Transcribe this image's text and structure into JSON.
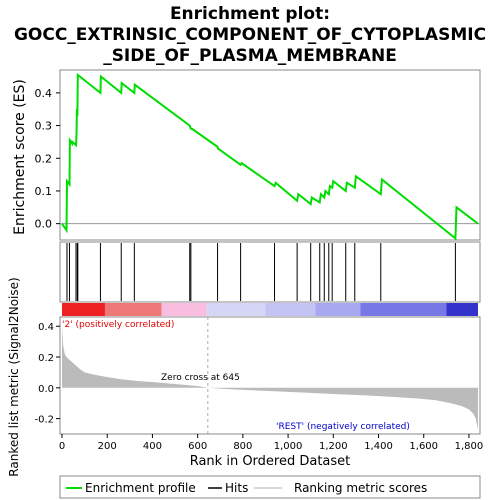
{
  "chart_data": {
    "type": "line",
    "title_lines": [
      "Enrichment plot:",
      "GOCC_EXTRINSIC_COMPONENT_OF_CYTOPLASMIC",
      "_SIDE_OF_PLASMA_MEMBRANE"
    ],
    "top_panel": {
      "ylabel": "Enrichment score (ES)",
      "ylim": [
        -0.05,
        0.47
      ],
      "yticks": [
        0.0,
        0.1,
        0.2,
        0.3,
        0.4
      ],
      "ytick_labels": [
        "0.0",
        "0.1",
        "0.2",
        "0.3",
        "0.4"
      ],
      "series": [
        {
          "line_color": "#00dd00",
          "x": [
            0,
            20,
            22,
            33,
            35,
            45,
            46,
            62,
            64,
            66,
            68,
            70,
            170,
            172,
            262,
            264,
            320,
            322,
            565,
            567,
            570,
            575,
            688,
            690,
            790,
            795,
            940,
            945,
            1040,
            1045,
            1100,
            1105,
            1140,
            1145,
            1160,
            1165,
            1180,
            1185,
            1195,
            1200,
            1255,
            1260,
            1295,
            1300,
            1410,
            1415,
            1740,
            1745,
            1840
          ],
          "y": [
            0.0,
            -0.02,
            0.13,
            0.12,
            0.255,
            0.245,
            0.25,
            0.24,
            0.27,
            0.35,
            0.33,
            0.455,
            0.4,
            0.45,
            0.4,
            0.43,
            0.4,
            0.425,
            0.3,
            0.295,
            0.29,
            0.29,
            0.235,
            0.23,
            0.18,
            0.185,
            0.115,
            0.125,
            0.07,
            0.09,
            0.06,
            0.08,
            0.065,
            0.09,
            0.08,
            0.1,
            0.09,
            0.115,
            0.11,
            0.13,
            0.1,
            0.125,
            0.11,
            0.145,
            0.09,
            0.135,
            -0.045,
            0.05,
            0.0
          ]
        }
      ]
    },
    "hits_panel": {
      "hit_color": "#000000",
      "hits": [
        22,
        33,
        62,
        68,
        70,
        170,
        262,
        320,
        565,
        570,
        688,
        790,
        940,
        1040,
        1100,
        1140,
        1160,
        1180,
        1195,
        1255,
        1295,
        1410,
        1740
      ]
    },
    "colorbar": {
      "segments": [
        {
          "x0": 0,
          "x1": 190,
          "color": "#ee2222"
        },
        {
          "x0": 190,
          "x1": 440,
          "color": "#ee7777"
        },
        {
          "x0": 440,
          "x1": 640,
          "color": "#f9bddf"
        },
        {
          "x0": 640,
          "x1": 900,
          "color": "#d6d6f6"
        },
        {
          "x0": 900,
          "x1": 1120,
          "color": "#c4c4f4"
        },
        {
          "x0": 1120,
          "x1": 1320,
          "color": "#a8a8f0"
        },
        {
          "x0": 1320,
          "x1": 1700,
          "color": "#7777e6"
        },
        {
          "x0": 1700,
          "x1": 1840,
          "color": "#3333cc"
        }
      ]
    },
    "bottom_panel": {
      "ylabel": "Ranked list metric (Signal2Noise)",
      "ylim": [
        -0.3,
        0.46
      ],
      "yticks": [
        -0.2,
        0.0,
        0.2,
        0.4
      ],
      "ytick_labels": [
        "-0.2",
        "0.0",
        "0.2",
        "0.4"
      ],
      "metric_x": [
        0,
        5,
        12,
        20,
        35,
        50,
        65,
        80,
        100,
        130,
        160,
        200,
        260,
        330,
        420,
        500,
        600,
        645,
        750,
        900,
        1050,
        1200,
        1350,
        1480,
        1580,
        1650,
        1720,
        1770,
        1800,
        1820,
        1830,
        1840
      ],
      "metric_y": [
        0.4,
        0.28,
        0.22,
        0.2,
        0.18,
        0.16,
        0.14,
        0.12,
        0.1,
        0.09,
        0.08,
        0.07,
        0.055,
        0.045,
        0.035,
        0.025,
        0.012,
        0.0,
        -0.01,
        -0.02,
        -0.03,
        -0.04,
        -0.05,
        -0.06,
        -0.07,
        -0.08,
        -0.1,
        -0.12,
        -0.14,
        -0.17,
        -0.2,
        -0.27
      ],
      "fill_color": "#bbbbbb",
      "zero_cross_x": 645,
      "zero_cross_label": "Zero cross at 645",
      "pos_label": "'2' (positively correlated)",
      "neg_label": "'REST' (negatively correlated)"
    },
    "xlabel": "Rank in Ordered Dataset",
    "xlim": [
      0,
      1840
    ],
    "xticks": [
      0,
      200,
      400,
      600,
      800,
      1000,
      1200,
      1400,
      1600,
      1800
    ],
    "xtick_labels": [
      "0",
      "200",
      "400",
      "600",
      "800",
      "1,000",
      "1,200",
      "1,400",
      "1,600",
      "1,800"
    ],
    "legend": [
      {
        "label": "Enrichment profile",
        "color": "#00dd00"
      },
      {
        "label": "Hits",
        "color": "#000000"
      },
      {
        "label": "Ranking metric scores",
        "color": "#cccccc"
      }
    ]
  }
}
